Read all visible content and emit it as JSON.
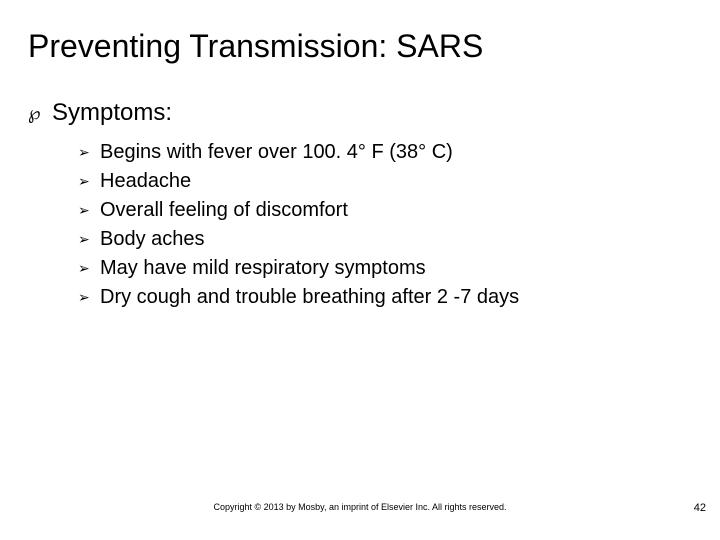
{
  "title": "Preventing Transmission: SARS",
  "section": {
    "heading": "Symptoms:"
  },
  "bullet_glyph": "℘",
  "arrow_glyph": "➢",
  "items": [
    "Begins with fever over 100. 4° F (38° C)",
    "Headache",
    "Overall feeling of discomfort",
    "Body aches",
    "May have mild respiratory symptoms",
    "Dry cough and trouble breathing after 2 -7 days"
  ],
  "copyright": "Copyright © 2013 by Mosby, an imprint of Elsevier Inc. All rights reserved.",
  "page_number": "42",
  "colors": {
    "text": "#000000",
    "background": "#ffffff"
  },
  "fontsize": {
    "title": 32,
    "lvl1": 24,
    "lvl2": 20,
    "footer": 9,
    "pagenum": 11
  }
}
